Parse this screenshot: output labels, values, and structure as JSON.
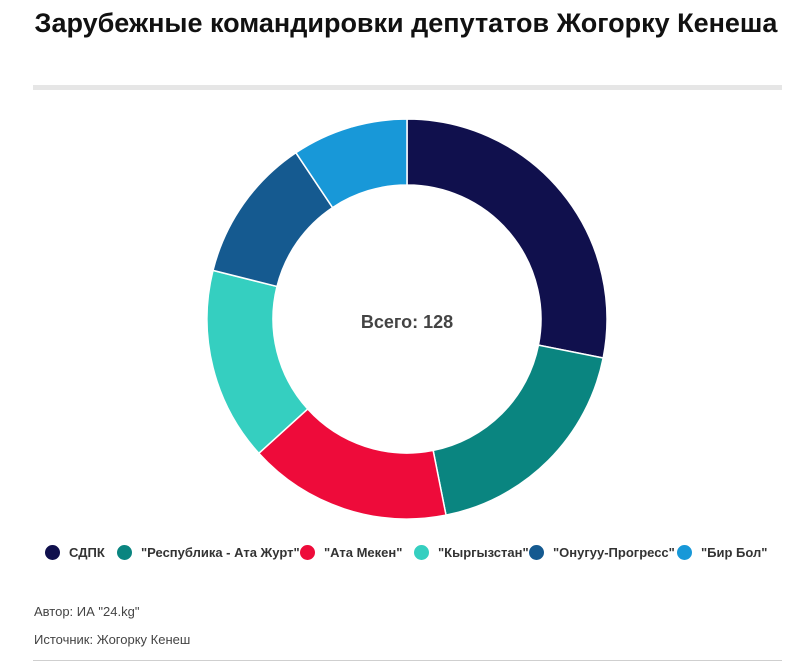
{
  "chart_data": {
    "type": "pie",
    "title": "Зарубежные командировки депутатов Жогорку Кенеша",
    "center_label": "Всего: 128",
    "legend_position": "bottom",
    "slices": [
      {
        "label": "СДПК",
        "value": 36,
        "color": "#10104d"
      },
      {
        "label": "\"Республика - Ата Журт\"",
        "value": 24,
        "color": "#0a8580"
      },
      {
        "label": "\"Ата Мекен\"",
        "value": 21,
        "color": "#ee0b3a"
      },
      {
        "label": "\"Кыргызстан\"",
        "value": 20,
        "color": "#35cfc0"
      },
      {
        "label": "\"Онугуу-Прогресс\"",
        "value": 15,
        "color": "#155a90"
      },
      {
        "label": "\"Бир Бол\"",
        "value": 12,
        "color": "#1898d8"
      }
    ]
  },
  "footer": {
    "author": "Автор: ИА \"24.kg\"",
    "source": "Источник: Жогорку Кенеш"
  }
}
